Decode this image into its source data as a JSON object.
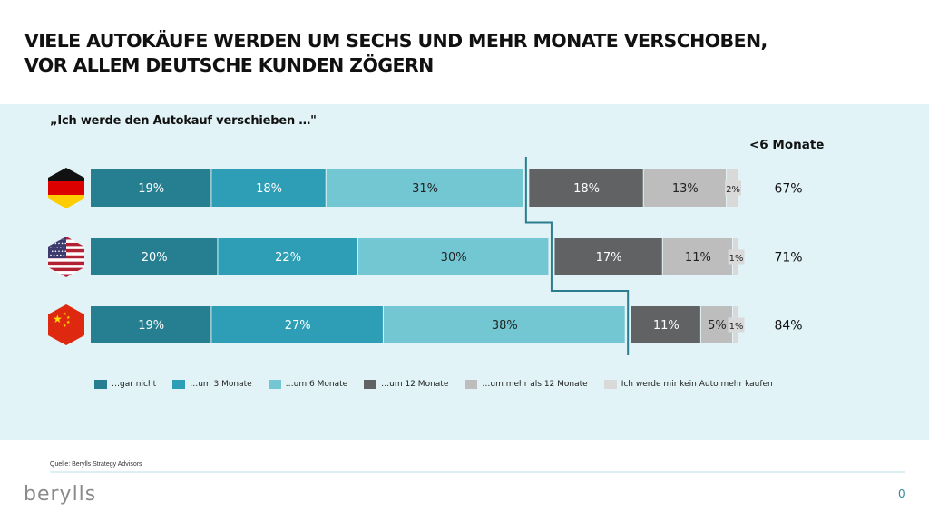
{
  "title": {
    "line1": "Viele Autokäufe werden um sechs und mehr Monate verschoben,",
    "line2": "vor allem deutsche Kunden zögern"
  },
  "subtitle": "„Ich werde den Autokauf verschieben …\"",
  "lt6_header": "<6 Monate",
  "colors": {
    "gar_nicht": "#267f91",
    "um_3": "#2e9eb6",
    "um_6": "#73c7d3",
    "um_12": "#616263",
    "mehr_12": "#bdbdbd",
    "kein_auto": "#d9d9d9",
    "panel_bg": "#e1f3f6",
    "separator": "#2a7e8f"
  },
  "chart_data": {
    "type": "bar",
    "orientation": "horizontal",
    "stacked": true,
    "title": "„Ich werde den Autokauf verschieben …\"",
    "categories": [
      "Deutschland",
      "USA",
      "China"
    ],
    "category_icons": [
      "germany-flag",
      "usa-flag",
      "china-flag"
    ],
    "series": [
      {
        "name": "…gar nicht",
        "key": "gar_nicht",
        "values": [
          19,
          20,
          19
        ]
      },
      {
        "name": "…um 3 Monate",
        "key": "um_3",
        "values": [
          18,
          22,
          27
        ]
      },
      {
        "name": "…um 6 Monate",
        "key": "um_6",
        "values": [
          31,
          30,
          38
        ]
      },
      {
        "name": "…um 12 Monate",
        "key": "um_12",
        "values": [
          18,
          17,
          11
        ]
      },
      {
        "name": "…um mehr als 12 Monate",
        "key": "mehr_12",
        "values": [
          13,
          11,
          5
        ]
      },
      {
        "name": "Ich werde mir kein Auto mehr kaufen",
        "key": "kein_auto",
        "values": [
          2,
          1,
          1
        ]
      }
    ],
    "totals_label": "<6 Monate",
    "totals": [
      "67%",
      "71%",
      "84%"
    ],
    "separator_after_series": 2,
    "value_suffix": "%",
    "legend_position": "bottom",
    "xlim": [
      0,
      101
    ]
  },
  "legend": [
    {
      "label": "…gar nicht",
      "key": "gar_nicht"
    },
    {
      "label": "…um 3 Monate",
      "key": "um_3"
    },
    {
      "label": "…um 6 Monate",
      "key": "um_6"
    },
    {
      "label": "…um 12 Monate",
      "key": "um_12"
    },
    {
      "label": "…um mehr als 12 Monate",
      "key": "mehr_12"
    },
    {
      "label": "Ich werde mir kein Auto mehr kaufen",
      "key": "kein_auto"
    }
  ],
  "footer": {
    "source": "Quelle: Berylls Strategy Advisors",
    "logo": "berylls",
    "page_number": "0"
  }
}
